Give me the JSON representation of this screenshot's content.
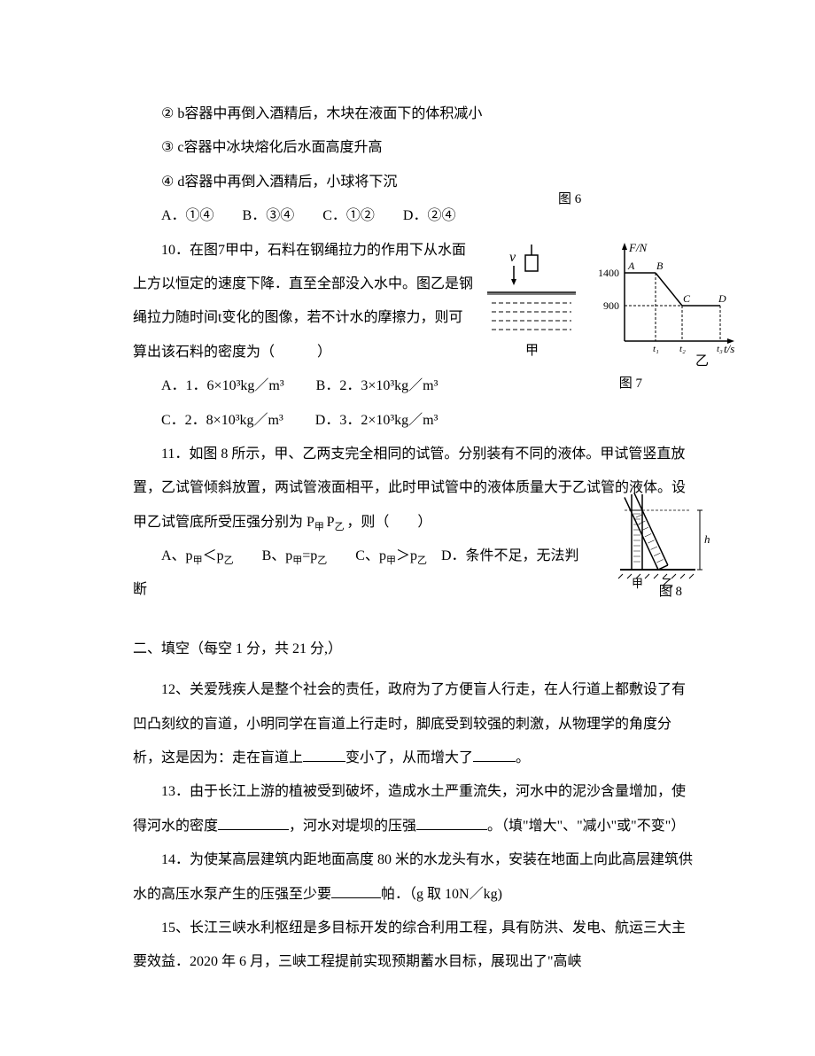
{
  "q9": {
    "stmt2": "② b容器中再倒入酒精后，木块在液面下的体积减小",
    "stmt3": "③ c容器中冰块熔化后水面高度升高",
    "stmt4": "④ d容器中再倒入酒精后，小球将下沉",
    "choices": "A．①④　　B．③④　　C．①②　　D．②④",
    "fig_label": "图 6"
  },
  "q10": {
    "body": "10．在图7甲中，石料在钢绳拉力的作用下从水面上方以恒定的速度下降．直至全部没入水中。图乙是钢绳拉力随时间t变化的图像，若不计水的摩擦力，则可算出该石料的密度为（　　　）",
    "optA": "A．1．6×10³kg／m³",
    "optB": "B．2．3×10³kg／m³",
    "optC": "C．2．8×10³kg／m³",
    "optD": "D．3．2×10³kg／m³",
    "fig_label": "图 7",
    "chart": {
      "y_axis_label": "F/N",
      "x_axis_label": "t/s",
      "y_ticks": [
        900,
        1400
      ],
      "points": [
        "A",
        "B",
        "C",
        "D"
      ],
      "left_label_v": "v",
      "left_label_jia": "甲",
      "right_label_yi": "乙",
      "colors": {
        "line": "#000000",
        "bg": "#ffffff"
      }
    }
  },
  "q11": {
    "body": "11．如图 8 所示，甲、乙两支完全相同的试管。分别装有不同的液体。甲试管竖直放置，乙试管倾斜放置，两试管液面相平，此时甲试管中的液体质量大于乙试管的液体。设甲乙试管底所受压强分别为 P",
    "body2": "，则（　　）",
    "choices_pre": "A、p",
    "choice_a_mid": "＜p",
    "choice_b_pre": "　　B、p",
    "choice_b_mid": "=p",
    "choice_c_pre": "　　C、p",
    "choice_c_mid": "＞p",
    "choice_d": "　D．条件不足，无法判断",
    "sub_jia": "甲",
    "sub_yi": "乙",
    "sub_jia_p": "甲 ",
    "sub_yi_p": "乙 ",
    "fig_label": "图 8",
    "diagram": {
      "label_jia": "甲",
      "label_yi": "乙",
      "h_label": "h"
    }
  },
  "section2": {
    "title": "二、填空（每空 1 分，共 21 分,）"
  },
  "q12": {
    "body_a": "12、关爱残疾人是整个社会的责任，政府为了方便盲人行走，在人行道上都敷设了有凹凸刻纹的盲道，小明同学在盲道上行走时，脚底受到较强的刺激，从物理学的角度分析，这是因为：走在盲道上",
    "body_b": "变小了，从而增大了",
    "body_c": "。",
    "blank_width_1": 48,
    "blank_width_2": 48
  },
  "q13": {
    "body_a": "13．由于长江上游的植被受到破坏，造成水土严重流失，河水中的泥沙含量增加，使得河水的密度",
    "body_b": "，河水对堤坝的压强",
    "body_c": "。（填\"增大\"、\"减小\"或\"不变\"）",
    "blank_width_1": 80,
    "blank_width_2": 80
  },
  "q14": {
    "body_a": "14．为使某高层建筑内距地面高度 80 米的水龙头有水，安装在地面上向此高层建筑供水的高压水泵产生的压强至少要",
    "body_b": "帕．（g 取 10N／kg)",
    "blank_width": 56
  },
  "q15": {
    "body": "15、长江三峡水利枢纽是多目标开发的综合利用工程，具有防洪、发电、航运三大主要效益．2020 年 6 月，三峡工程提前实现预期蓄水目标，展现出了\"高峡"
  }
}
